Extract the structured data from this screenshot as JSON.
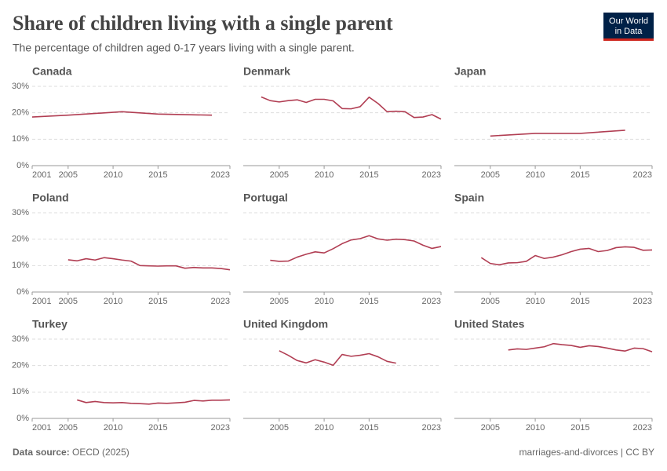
{
  "title": "Share of children living with a single parent",
  "subtitle": "The percentage of children aged 0-17 years living with a single parent.",
  "logo": [
    "Our World",
    "in Data"
  ],
  "source_label": "Data source:",
  "source": "OECD (2025)",
  "license": "marriages-and-divorces | CC BY",
  "chart_data": [
    {
      "type": "line",
      "title": "Canada",
      "color": "#b13e53",
      "grid": true,
      "ytick_labels": true,
      "x": [
        2001,
        2005,
        2011,
        2015,
        2021
      ],
      "values": [
        18.4,
        19.1,
        20.4,
        19.5,
        19.1
      ],
      "xlim": [
        2001,
        2023
      ],
      "xticks": [
        2001,
        2005,
        2010,
        2015,
        2023
      ],
      "ylim": [
        0,
        30
      ],
      "yticks": [
        {
          "value": 0,
          "label": "0%"
        },
        {
          "value": 10,
          "label": "10%"
        },
        {
          "value": 20,
          "label": "20%"
        },
        {
          "value": 30,
          "label": "30%"
        }
      ]
    },
    {
      "type": "line",
      "title": "Denmark",
      "color": "#b13e53",
      "grid": true,
      "ytick_labels": false,
      "x": [
        2003,
        2004,
        2005,
        2006,
        2007,
        2008,
        2009,
        2010,
        2011,
        2012,
        2013,
        2014,
        2015,
        2016,
        2017,
        2018,
        2019,
        2020,
        2021,
        2022,
        2023
      ],
      "values": [
        26.0,
        24.6,
        24.1,
        24.6,
        24.9,
        23.9,
        25.1,
        25.1,
        24.5,
        21.6,
        21.5,
        22.3,
        25.9,
        23.5,
        20.4,
        20.6,
        20.4,
        18.2,
        18.4,
        19.3,
        17.6
      ],
      "xlim": [
        2001,
        2023
      ],
      "xticks": [
        2005,
        2010,
        2015,
        2023
      ],
      "ylim": [
        0,
        30
      ],
      "yticks": [
        {
          "value": 0,
          "label": "0%"
        },
        {
          "value": 10,
          "label": "10%"
        },
        {
          "value": 20,
          "label": "20%"
        },
        {
          "value": 30,
          "label": "30%"
        }
      ]
    },
    {
      "type": "line",
      "title": "Japan",
      "color": "#b13e53",
      "grid": true,
      "ytick_labels": false,
      "x": [
        2005,
        2010,
        2015,
        2020
      ],
      "values": [
        11.2,
        12.2,
        12.2,
        13.4
      ],
      "xlim": [
        2001,
        2023
      ],
      "xticks": [
        2005,
        2010,
        2015,
        2023
      ],
      "ylim": [
        0,
        30
      ],
      "yticks": [
        {
          "value": 0,
          "label": "0%"
        },
        {
          "value": 10,
          "label": "10%"
        },
        {
          "value": 20,
          "label": "20%"
        },
        {
          "value": 30,
          "label": "30%"
        }
      ]
    },
    {
      "type": "line",
      "title": "Poland",
      "color": "#b13e53",
      "grid": true,
      "ytick_labels": true,
      "x": [
        2005,
        2006,
        2007,
        2008,
        2009,
        2010,
        2011,
        2012,
        2013,
        2014,
        2015,
        2016,
        2017,
        2018,
        2019,
        2020,
        2021,
        2022,
        2023
      ],
      "values": [
        12.2,
        11.8,
        12.6,
        12.1,
        13.0,
        12.6,
        12.1,
        11.7,
        10.0,
        9.9,
        9.8,
        9.9,
        9.9,
        9.0,
        9.3,
        9.1,
        9.1,
        8.9,
        8.4
      ],
      "xlim": [
        2001,
        2023
      ],
      "xticks": [
        2001,
        2005,
        2010,
        2015,
        2023
      ],
      "ylim": [
        0,
        30
      ],
      "yticks": [
        {
          "value": 0,
          "label": "0%"
        },
        {
          "value": 10,
          "label": "10%"
        },
        {
          "value": 20,
          "label": "20%"
        },
        {
          "value": 30,
          "label": "30%"
        }
      ]
    },
    {
      "type": "line",
      "title": "Portugal",
      "color": "#b13e53",
      "grid": true,
      "ytick_labels": false,
      "x": [
        2004,
        2005,
        2006,
        2007,
        2008,
        2009,
        2010,
        2011,
        2012,
        2013,
        2014,
        2015,
        2016,
        2017,
        2018,
        2019,
        2020,
        2021,
        2022,
        2023
      ],
      "values": [
        12.0,
        11.6,
        11.7,
        13.2,
        14.3,
        15.2,
        14.8,
        16.4,
        18.3,
        19.7,
        20.2,
        21.3,
        20.1,
        19.6,
        20.0,
        19.8,
        19.3,
        17.7,
        16.5,
        17.2
      ],
      "xlim": [
        2001,
        2023
      ],
      "xticks": [
        2005,
        2010,
        2015,
        2023
      ],
      "ylim": [
        0,
        30
      ],
      "yticks": [
        {
          "value": 0,
          "label": "0%"
        },
        {
          "value": 10,
          "label": "10%"
        },
        {
          "value": 20,
          "label": "20%"
        },
        {
          "value": 30,
          "label": "30%"
        }
      ]
    },
    {
      "type": "line",
      "title": "Spain",
      "color": "#b13e53",
      "grid": true,
      "ytick_labels": false,
      "x": [
        2004,
        2005,
        2006,
        2007,
        2008,
        2009,
        2010,
        2011,
        2012,
        2013,
        2014,
        2015,
        2016,
        2017,
        2018,
        2019,
        2020,
        2021,
        2022,
        2023
      ],
      "values": [
        13.0,
        10.8,
        10.3,
        11.0,
        11.1,
        11.6,
        13.8,
        12.7,
        13.2,
        14.1,
        15.3,
        16.2,
        16.5,
        15.3,
        15.7,
        16.8,
        17.1,
        16.9,
        15.8,
        15.9
      ],
      "xlim": [
        2001,
        2023
      ],
      "xticks": [
        2005,
        2010,
        2015,
        2023
      ],
      "ylim": [
        0,
        30
      ],
      "yticks": [
        {
          "value": 0,
          "label": "0%"
        },
        {
          "value": 10,
          "label": "10%"
        },
        {
          "value": 20,
          "label": "20%"
        },
        {
          "value": 30,
          "label": "30%"
        }
      ]
    },
    {
      "type": "line",
      "title": "Turkey",
      "color": "#b13e53",
      "grid": true,
      "ytick_labels": true,
      "x": [
        2006,
        2007,
        2008,
        2009,
        2010,
        2011,
        2012,
        2013,
        2014,
        2015,
        2016,
        2017,
        2018,
        2019,
        2020,
        2021,
        2022,
        2023
      ],
      "values": [
        7.0,
        6.0,
        6.4,
        6.0,
        5.9,
        6.0,
        5.7,
        5.6,
        5.4,
        5.8,
        5.7,
        5.9,
        6.1,
        6.8,
        6.6,
        6.9,
        6.9,
        7.0
      ],
      "xlim": [
        2001,
        2023
      ],
      "xticks": [
        2001,
        2005,
        2010,
        2015,
        2023
      ],
      "ylim": [
        0,
        30
      ],
      "yticks": [
        {
          "value": 0,
          "label": "0%"
        },
        {
          "value": 10,
          "label": "10%"
        },
        {
          "value": 20,
          "label": "20%"
        },
        {
          "value": 30,
          "label": "30%"
        }
      ]
    },
    {
      "type": "line",
      "title": "United Kingdom",
      "color": "#b13e53",
      "grid": true,
      "ytick_labels": false,
      "x": [
        2005,
        2006,
        2007,
        2008,
        2009,
        2010,
        2011,
        2012,
        2013,
        2014,
        2015,
        2016,
        2017,
        2018
      ],
      "values": [
        25.6,
        23.9,
        21.9,
        21.0,
        22.2,
        21.3,
        20.1,
        24.2,
        23.5,
        23.9,
        24.5,
        23.3,
        21.6,
        20.9
      ],
      "xlim": [
        2001,
        2023
      ],
      "xticks": [
        2005,
        2010,
        2015,
        2023
      ],
      "ylim": [
        0,
        30
      ],
      "yticks": [
        {
          "value": 0,
          "label": "0%"
        },
        {
          "value": 10,
          "label": "10%"
        },
        {
          "value": 20,
          "label": "20%"
        },
        {
          "value": 30,
          "label": "30%"
        }
      ]
    },
    {
      "type": "line",
      "title": "United States",
      "color": "#b13e53",
      "grid": true,
      "ytick_labels": false,
      "x": [
        2007,
        2008,
        2009,
        2010,
        2011,
        2012,
        2013,
        2014,
        2015,
        2016,
        2017,
        2018,
        2019,
        2020,
        2021,
        2022,
        2023
      ],
      "values": [
        25.9,
        26.3,
        26.1,
        26.6,
        27.1,
        28.3,
        27.9,
        27.6,
        26.9,
        27.5,
        27.2,
        26.6,
        25.9,
        25.5,
        26.6,
        26.4,
        25.2
      ],
      "xlim": [
        2001,
        2023
      ],
      "xticks": [
        2005,
        2010,
        2015,
        2023
      ],
      "ylim": [
        0,
        30
      ],
      "yticks": [
        {
          "value": 0,
          "label": "0%"
        },
        {
          "value": 10,
          "label": "10%"
        },
        {
          "value": 20,
          "label": "20%"
        },
        {
          "value": 30,
          "label": "30%"
        }
      ]
    }
  ]
}
